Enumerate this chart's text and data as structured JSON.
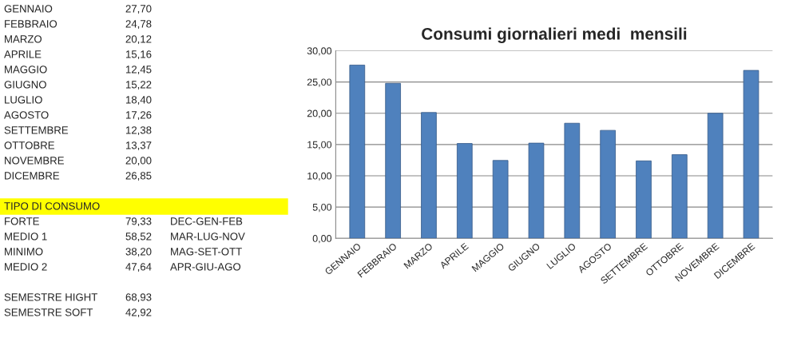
{
  "chart_data": {
    "type": "bar",
    "title": "Consumi giornalieri medi  mensili",
    "categories": [
      "GENNAIO",
      "FEBBRAIO",
      "MARZO",
      "APRILE",
      "MAGGIO",
      "GIUGNO",
      "LUGLIO",
      "AGOSTO",
      "SETTEMBRE",
      "OTTOBRE",
      "NOVEMBRE",
      "DICEMBRE"
    ],
    "values": [
      27.7,
      24.78,
      20.12,
      15.16,
      12.45,
      15.22,
      18.4,
      17.26,
      12.38,
      13.37,
      20.0,
      26.85
    ],
    "color": "#4f81bd",
    "ylim": [
      0,
      30
    ],
    "yticks": [
      {
        "value": 0,
        "label": "0,00"
      },
      {
        "value": 5,
        "label": "5,00"
      },
      {
        "value": 10,
        "label": "10,00"
      },
      {
        "value": 15,
        "label": "15,00"
      },
      {
        "value": 20,
        "label": "20,00"
      },
      {
        "value": 25,
        "label": "25,00"
      },
      {
        "value": 30,
        "label": "30,00"
      }
    ],
    "grid": "y",
    "legend": false,
    "annotations": [
      "GENNAIO",
      "27,70",
      "FEBBRAIO",
      "24,78",
      "MARZO",
      "20,12",
      "APRILE",
      "15,16",
      "MAGGIO",
      "12,45",
      "GIUGNO",
      "15,22",
      "LUGLIO",
      "18,40",
      "AGOSTO",
      "17,26",
      "SETTEMBRE",
      "12,38",
      "OTTOBRE",
      "13,37",
      "NOVEMBRE",
      "20,00",
      "DICEMBRE",
      "26,85",
      "TIPO DI CONSUMO",
      "FORTE",
      "79,33",
      "DEC-GEN-FEB",
      "MEDIO 1",
      "58,52",
      "MAR-LUG-NOV",
      "MINIMO",
      "38,20",
      "MAG-SET-OTT",
      "MEDIO 2",
      "47,64",
      "APR-GIU-AGO",
      "SEMESTRE HIGHT",
      "68,93",
      "SEMESTRE SOFT",
      "42,92"
    ]
  }
}
